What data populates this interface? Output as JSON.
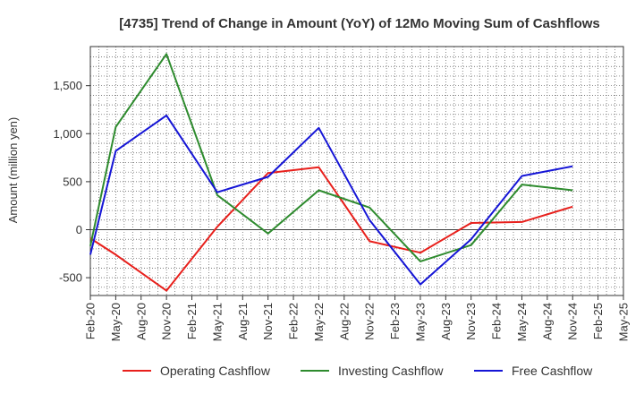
{
  "chart_data": {
    "type": "line",
    "title": "[4735]  Trend of Change in Amount (YoY) of 12Mo Moving Sum of Cashflows",
    "xlabel": "",
    "ylabel": "Amount (million yen)",
    "ylim": [
      -700,
      1900
    ],
    "y_ticks": [
      -500,
      0,
      500,
      1000,
      1500
    ],
    "y_tick_labels": [
      "-500",
      "0",
      "500",
      "1,000",
      "1,500"
    ],
    "grid": true,
    "legend_position": "bottom",
    "categories": [
      "Feb-20",
      "May-20",
      "Aug-20",
      "Nov-20",
      "Feb-21",
      "May-21",
      "Aug-21",
      "Nov-21",
      "Feb-22",
      "May-22",
      "Aug-22",
      "Nov-22",
      "Feb-23",
      "May-23",
      "Aug-23",
      "Nov-23",
      "Feb-24",
      "May-24",
      "Aug-24",
      "Nov-24",
      "Feb-25",
      "May-25"
    ],
    "series": [
      {
        "name": "Operating Cashflow",
        "color": "#e8201c",
        "values": [
          -90,
          -260,
          null,
          -635,
          null,
          30,
          null,
          590,
          null,
          650,
          null,
          -120,
          null,
          -240,
          null,
          70,
          null,
          80,
          null,
          240,
          null,
          null
        ]
      },
      {
        "name": "Investing Cashflow",
        "color": "#2e8b2e",
        "values": [
          -170,
          1070,
          null,
          1830,
          null,
          360,
          null,
          -40,
          null,
          410,
          null,
          230,
          null,
          -330,
          null,
          -160,
          null,
          470,
          null,
          410,
          null,
          null
        ]
      },
      {
        "name": "Free Cashflow",
        "color": "#1515d6",
        "values": [
          -260,
          820,
          null,
          1190,
          null,
          390,
          null,
          550,
          null,
          1060,
          null,
          100,
          null,
          -570,
          null,
          -100,
          null,
          560,
          null,
          660,
          null,
          null
        ]
      }
    ]
  }
}
